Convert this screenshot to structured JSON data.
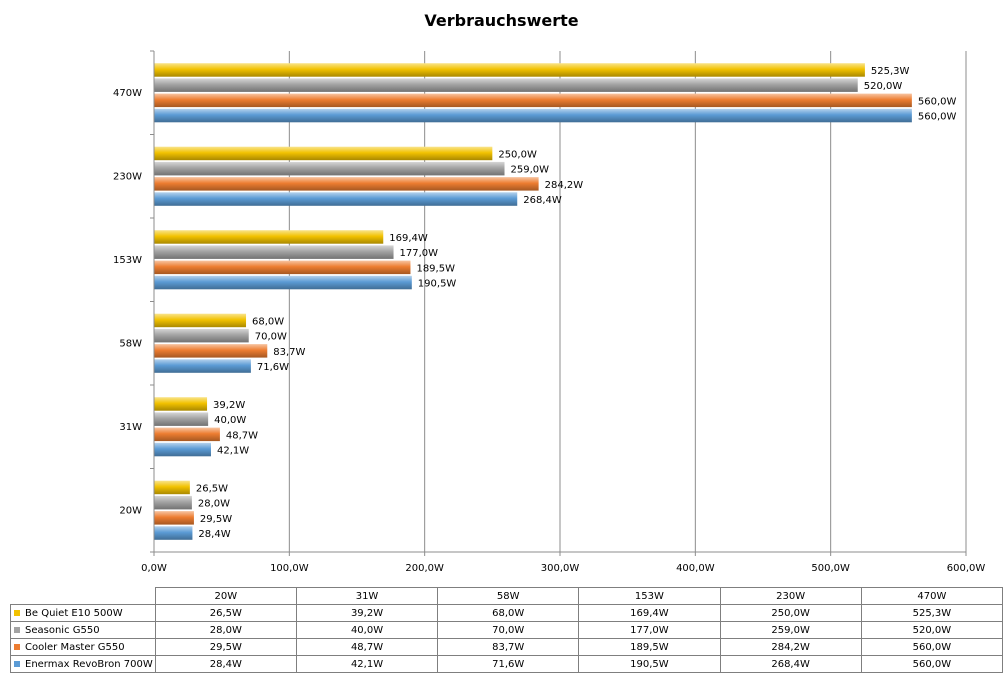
{
  "chart_data": {
    "type": "bar",
    "orientation": "horizontal",
    "title": "Verbrauchswerte",
    "xlabel": "",
    "ylabel": "",
    "xlim": [
      0,
      600
    ],
    "x_ticks": [
      "0,0W",
      "100,0W",
      "200,0W",
      "300,0W",
      "400,0W",
      "500,0W",
      "600,0W"
    ],
    "grid": true,
    "legend": "data-table-bottom",
    "categories": [
      "20W",
      "31W",
      "58W",
      "153W",
      "230W",
      "470W"
    ],
    "series": [
      {
        "name": "Be Quiet E10 500W",
        "color": "#f2c200",
        "values": [
          26.5,
          39.2,
          68.0,
          169.4,
          250.0,
          525.3
        ],
        "labels": [
          "26,5W",
          "39,2W",
          "68,0W",
          "169,4W",
          "250,0W",
          "525,3W"
        ]
      },
      {
        "name": "Seasonic G550",
        "color": "#a3a3a3",
        "values": [
          28.0,
          40.0,
          70.0,
          177.0,
          259.0,
          520.0
        ],
        "labels": [
          "28,0W",
          "40,0W",
          "70,0W",
          "177,0W",
          "259,0W",
          "520,0W"
        ]
      },
      {
        "name": "Cooler Master G550",
        "color": "#ed7d31",
        "values": [
          29.5,
          48.7,
          83.7,
          189.5,
          284.2,
          560.0
        ],
        "labels": [
          "29,5W",
          "48,7W",
          "83,7W",
          "189,5W",
          "284,2W",
          "560,0W"
        ]
      },
      {
        "name": "Enermax RevoBron 700W",
        "color": "#5b9bd5",
        "values": [
          28.4,
          42.1,
          71.6,
          190.5,
          268.4,
          560.0
        ],
        "labels": [
          "28,4W",
          "42,1W",
          "71,6W",
          "190,5W",
          "268,4W",
          "560,0W"
        ]
      }
    ]
  }
}
